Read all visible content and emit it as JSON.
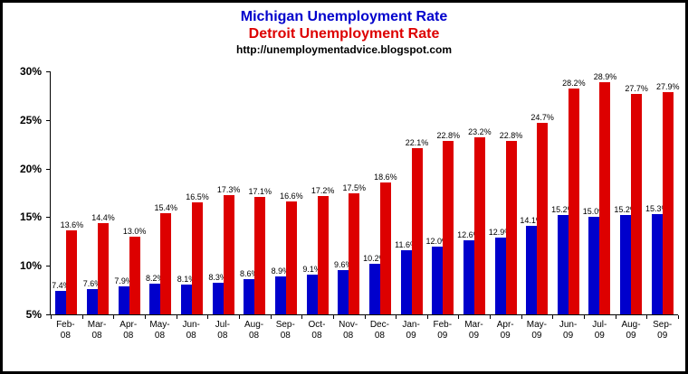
{
  "chart_data": {
    "type": "bar",
    "title_lines": [
      {
        "text": "Michigan Unemployment Rate",
        "color": "#0000CC"
      },
      {
        "text": "Detroit Unemployment Rate",
        "color": "#DD0000"
      },
      {
        "text": "http://unemploymentadvice.blogspot.com",
        "color": "#000000"
      }
    ],
    "categories": [
      "Feb-08",
      "Mar-08",
      "Apr-08",
      "May-08",
      "Jun-08",
      "Jul-08",
      "Aug-08",
      "Sep-08",
      "Oct-08",
      "Nov-08",
      "Dec-08",
      "Jan-09",
      "Feb-09",
      "Mar-09",
      "Apr-09",
      "May-09",
      "Jun-09",
      "Jul-09",
      "Aug-09",
      "Sep-09"
    ],
    "series": [
      {
        "name": "Michigan",
        "color": "#0000CC",
        "values": [
          7.4,
          7.6,
          7.9,
          8.2,
          8.1,
          8.3,
          8.6,
          8.9,
          9.1,
          9.6,
          10.2,
          11.6,
          12.0,
          12.6,
          12.9,
          14.1,
          15.2,
          15.0,
          15.2,
          15.3
        ]
      },
      {
        "name": "Detroit",
        "color": "#DD0000",
        "values": [
          13.6,
          14.4,
          13.0,
          15.4,
          16.5,
          17.3,
          17.1,
          16.6,
          17.2,
          17.5,
          18.6,
          22.1,
          22.8,
          23.2,
          22.8,
          24.7,
          28.2,
          28.9,
          27.7,
          27.9
        ]
      }
    ],
    "ylim": [
      5,
      30
    ],
    "ytick_step": 5,
    "ytick_labels": [
      "5%",
      "10%",
      "15%",
      "20%",
      "25%",
      "30%"
    ],
    "grid": false,
    "legend": "none",
    "label_format": "percent_one_decimal"
  }
}
